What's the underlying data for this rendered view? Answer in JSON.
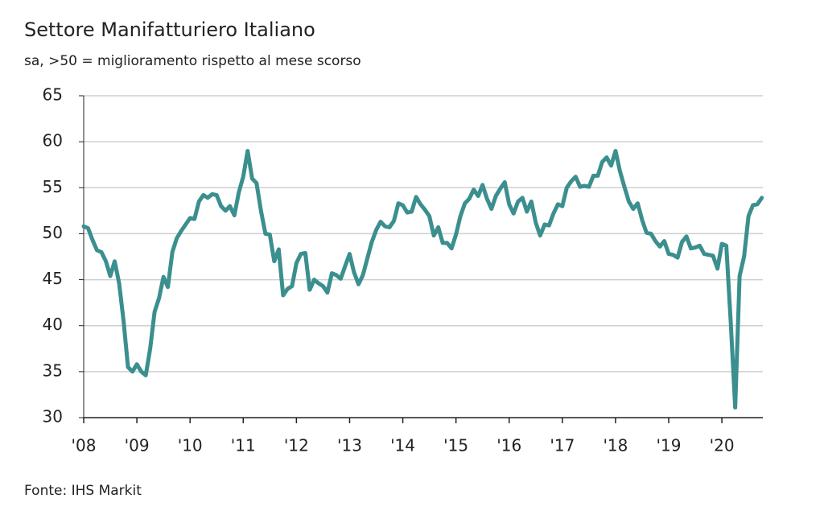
{
  "chart_data": {
    "type": "line",
    "title": "Settore Manifatturiero Italiano",
    "subtitle": "sa, >50 = miglioramento rispetto al mese scorso",
    "source": "Fonte: IHS Markit",
    "color": "#3b8f8e",
    "grid": true,
    "xlim": [
      2008,
      2020.77
    ],
    "xticks": [
      {
        "value": 2008,
        "label": "'08"
      },
      {
        "value": 2009,
        "label": "'09"
      },
      {
        "value": 2010,
        "label": "'10"
      },
      {
        "value": 2011,
        "label": "'11"
      },
      {
        "value": 2012,
        "label": "'12"
      },
      {
        "value": 2013,
        "label": "'13"
      },
      {
        "value": 2014,
        "label": "'14"
      },
      {
        "value": 2015,
        "label": "'15"
      },
      {
        "value": 2016,
        "label": "'16"
      },
      {
        "value": 2017,
        "label": "'17"
      },
      {
        "value": 2018,
        "label": "'18"
      },
      {
        "value": 2019,
        "label": "'19"
      },
      {
        "value": 2020,
        "label": "'20"
      }
    ],
    "ylim": [
      30,
      65
    ],
    "yticks": [
      30,
      35,
      40,
      45,
      50,
      55,
      60,
      65
    ],
    "x": [
      2008,
      2008.083,
      2008.167,
      2008.25,
      2008.333,
      2008.417,
      2008.5,
      2008.583,
      2008.667,
      2008.75,
      2008.833,
      2008.917,
      2009,
      2009.083,
      2009.167,
      2009.25,
      2009.333,
      2009.417,
      2009.5,
      2009.583,
      2009.667,
      2009.75,
      2009.833,
      2009.917,
      2010,
      2010.083,
      2010.167,
      2010.25,
      2010.333,
      2010.417,
      2010.5,
      2010.583,
      2010.667,
      2010.75,
      2010.833,
      2010.917,
      2011,
      2011.083,
      2011.167,
      2011.25,
      2011.333,
      2011.417,
      2011.5,
      2011.583,
      2011.667,
      2011.75,
      2011.833,
      2011.917,
      2012,
      2012.083,
      2012.167,
      2012.25,
      2012.333,
      2012.417,
      2012.5,
      2012.583,
      2012.667,
      2012.75,
      2012.833,
      2012.917,
      2013,
      2013.083,
      2013.167,
      2013.25,
      2013.333,
      2013.417,
      2013.5,
      2013.583,
      2013.667,
      2013.75,
      2013.833,
      2013.917,
      2014,
      2014.083,
      2014.167,
      2014.25,
      2014.333,
      2014.417,
      2014.5,
      2014.583,
      2014.667,
      2014.75,
      2014.833,
      2014.917,
      2015,
      2015.083,
      2015.167,
      2015.25,
      2015.333,
      2015.417,
      2015.5,
      2015.583,
      2015.667,
      2015.75,
      2015.833,
      2015.917,
      2016,
      2016.083,
      2016.167,
      2016.25,
      2016.333,
      2016.417,
      2016.5,
      2016.583,
      2016.667,
      2016.75,
      2016.833,
      2016.917,
      2017,
      2017.083,
      2017.167,
      2017.25,
      2017.333,
      2017.417,
      2017.5,
      2017.583,
      2017.667,
      2017.75,
      2017.833,
      2017.917,
      2018,
      2018.083,
      2018.167,
      2018.25,
      2018.333,
      2018.417,
      2018.5,
      2018.583,
      2018.667,
      2018.75,
      2018.833,
      2018.917,
      2019,
      2019.083,
      2019.167,
      2019.25,
      2019.333,
      2019.417,
      2019.5,
      2019.583,
      2019.667,
      2019.75,
      2019.833,
      2019.917,
      2020,
      2020.083,
      2020.167,
      2020.25,
      2020.333,
      2020.417,
      2020.5,
      2020.583,
      2020.667,
      2020.75
    ],
    "values": [
      50.8,
      50.6,
      49.3,
      48.2,
      48.0,
      47.0,
      45.4,
      47.0,
      44.6,
      40.5,
      35.5,
      35.0,
      35.8,
      35.0,
      34.6,
      37.5,
      41.5,
      43.0,
      45.3,
      44.2,
      48.0,
      49.5,
      50.3,
      51.0,
      51.7,
      51.6,
      53.5,
      54.2,
      53.9,
      54.3,
      54.2,
      53.0,
      52.5,
      53.0,
      52.0,
      54.5,
      56.2,
      59.0,
      56.0,
      55.5,
      52.5,
      50.0,
      49.9,
      47.0,
      48.3,
      43.3,
      44.0,
      44.3,
      46.8,
      47.8,
      47.9,
      43.9,
      45.0,
      44.6,
      44.3,
      43.6,
      45.7,
      45.5,
      45.1,
      46.5,
      47.8,
      45.8,
      44.5,
      45.5,
      47.3,
      49.1,
      50.4,
      51.3,
      50.8,
      50.7,
      51.4,
      53.3,
      53.1,
      52.3,
      52.4,
      54.0,
      53.2,
      52.6,
      51.9,
      49.8,
      50.7,
      49.0,
      49.0,
      48.4,
      49.9,
      51.9,
      53.3,
      53.8,
      54.8,
      54.1,
      55.3,
      53.8,
      52.7,
      54.1,
      54.9,
      55.6,
      53.2,
      52.2,
      53.5,
      53.9,
      52.4,
      53.5,
      51.2,
      49.8,
      51.0,
      50.9,
      52.2,
      53.2,
      53.0,
      55.0,
      55.7,
      56.2,
      55.1,
      55.2,
      55.1,
      56.3,
      56.3,
      57.8,
      58.3,
      57.4,
      59.0,
      56.8,
      55.1,
      53.5,
      52.7,
      53.3,
      51.5,
      50.1,
      50.0,
      49.2,
      48.6,
      49.2,
      47.8,
      47.7,
      47.4,
      49.1,
      49.7,
      48.4,
      48.5,
      48.7,
      47.8,
      47.7,
      47.6,
      46.2,
      48.9,
      48.7,
      40.3,
      31.1,
      45.4,
      47.5,
      51.9,
      53.1,
      53.2,
      53.9
    ]
  }
}
